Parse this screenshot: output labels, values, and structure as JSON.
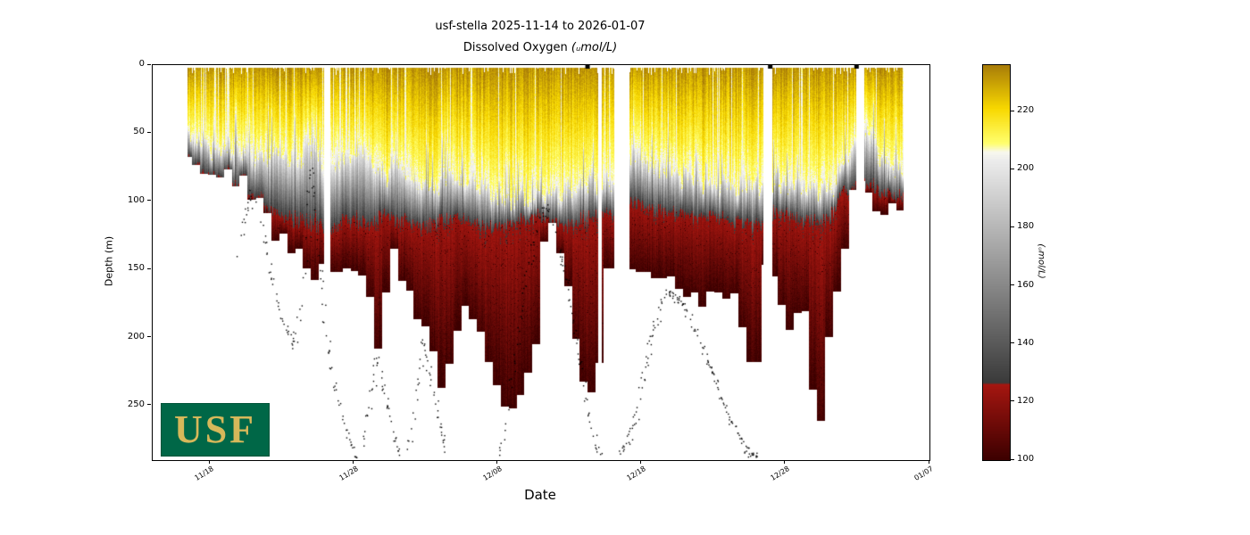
{
  "title": "usf-stella 2025-11-14 to 2026-01-07",
  "subtitle_prefix": "Dissolved Oxygen ",
  "subtitle_unit": "(ᵤmol/L)",
  "xlabel": "Date",
  "ylabel": "Depth (m)",
  "logo": {
    "text": "USF",
    "bg": "#006747",
    "fg": "#D6B85A"
  },
  "axes": {
    "x_ticks": [
      "11/18",
      "11/28",
      "12/08",
      "12/18",
      "12/28",
      "01/07"
    ],
    "x_tick_days": [
      4,
      14,
      24,
      34,
      44,
      54
    ],
    "y_ticks": [
      0,
      50,
      100,
      150,
      200,
      250
    ],
    "day_min": 0,
    "day_max": 54,
    "depth_max": 290
  },
  "colorbar": {
    "label": "(ᵤmol/L)",
    "ticks": [
      100,
      120,
      140,
      160,
      180,
      200,
      220
    ],
    "vmin": 100,
    "vmax": 236,
    "colormap_stops": [
      [
        100,
        "#3c0000"
      ],
      [
        126,
        "#a51610"
      ],
      [
        126.6,
        "#3a3a3a"
      ],
      [
        203,
        "#ececec"
      ],
      [
        206,
        "#f8f8ee"
      ],
      [
        209,
        "#ffff6e"
      ],
      [
        221,
        "#f8d800"
      ],
      [
        236,
        "#a87c08"
      ]
    ]
  },
  "chart_data": {
    "type": "heatmap",
    "title": "usf-stella 2025-11-14 to 2026-01-07",
    "variable": "Dissolved Oxygen",
    "units": "umol/L",
    "x_start_date": "2025-11-14",
    "x_end_date": "2026-01-07",
    "xlabel": "Date",
    "ylabel": "Depth (m)",
    "ylim": [
      0,
      290
    ],
    "value_range": [
      100,
      236
    ],
    "data_day_range": [
      2.4,
      52.2
    ],
    "surface_depth": 2,
    "gaps_days": [
      [
        11.9,
        12.35
      ],
      [
        30.95,
        31.2
      ],
      [
        32.1,
        33.15
      ],
      [
        42.45,
        43.05
      ],
      [
        48.9,
        49.45
      ]
    ],
    "top_marker_days": [
      30.2,
      42.9,
      48.9
    ],
    "value_levels": {
      "surface": 232,
      "yellow_base": 206,
      "gray_top": 204,
      "gray_base": 127,
      "red_top": 124,
      "red_base": 101
    },
    "yellow_gray_boundary": [
      [
        2.4,
        46
      ],
      [
        3.2,
        52
      ],
      [
        4.2,
        58
      ],
      [
        5.2,
        62
      ],
      [
        6.2,
        66
      ],
      [
        7.2,
        68
      ],
      [
        8.2,
        66
      ],
      [
        9.2,
        70
      ],
      [
        10.3,
        72
      ],
      [
        10.9,
        48
      ],
      [
        11.4,
        68
      ],
      [
        12.6,
        72
      ],
      [
        13.6,
        66
      ],
      [
        14.4,
        60
      ],
      [
        15.2,
        76
      ],
      [
        16.2,
        80
      ],
      [
        17.0,
        72
      ],
      [
        18.0,
        84
      ],
      [
        19.0,
        88
      ],
      [
        20.0,
        84
      ],
      [
        21.0,
        80
      ],
      [
        22.0,
        84
      ],
      [
        23.0,
        90
      ],
      [
        24.0,
        92
      ],
      [
        25.0,
        96
      ],
      [
        26.0,
        98
      ],
      [
        27.2,
        94
      ],
      [
        28.2,
        92
      ],
      [
        29.2,
        90
      ],
      [
        30.2,
        86
      ],
      [
        31.2,
        84
      ],
      [
        32.0,
        88
      ],
      [
        33.3,
        68
      ],
      [
        34.2,
        72
      ],
      [
        35.2,
        76
      ],
      [
        36.2,
        80
      ],
      [
        37.2,
        84
      ],
      [
        38.2,
        88
      ],
      [
        39.2,
        86
      ],
      [
        40.2,
        88
      ],
      [
        41.2,
        90
      ],
      [
        42.2,
        92
      ],
      [
        43.3,
        84
      ],
      [
        44.2,
        88
      ],
      [
        45.2,
        90
      ],
      [
        46.2,
        92
      ],
      [
        47.2,
        88
      ],
      [
        48.0,
        78
      ],
      [
        48.7,
        58
      ],
      [
        49.6,
        54
      ],
      [
        50.3,
        62
      ],
      [
        51.2,
        76
      ],
      [
        52.2,
        80
      ]
    ],
    "gray_red_boundary": [
      [
        2.4,
        90
      ],
      [
        6.0,
        95
      ],
      [
        7.0,
        100
      ],
      [
        8.0,
        106
      ],
      [
        9.0,
        112
      ],
      [
        10.0,
        117
      ],
      [
        11.0,
        118
      ],
      [
        12.0,
        120
      ],
      [
        13.0,
        118
      ],
      [
        14.0,
        114
      ],
      [
        15.0,
        118
      ],
      [
        16.0,
        112
      ],
      [
        17.0,
        114
      ],
      [
        18.0,
        117
      ],
      [
        19.0,
        120
      ],
      [
        20.0,
        115
      ],
      [
        21.0,
        112
      ],
      [
        22.0,
        115
      ],
      [
        23.0,
        118
      ],
      [
        24.0,
        120
      ],
      [
        25.0,
        118
      ],
      [
        26.0,
        114
      ],
      [
        27.2,
        112
      ],
      [
        28.0,
        117
      ],
      [
        29.0,
        118
      ],
      [
        30.0,
        115
      ],
      [
        31.0,
        110
      ],
      [
        32.0,
        112
      ],
      [
        33.3,
        100
      ],
      [
        34.0,
        104
      ],
      [
        35.0,
        108
      ],
      [
        36.0,
        110
      ],
      [
        37.0,
        112
      ],
      [
        38.0,
        114
      ],
      [
        39.0,
        112
      ],
      [
        40.0,
        114
      ],
      [
        41.0,
        117
      ],
      [
        42.0,
        120
      ],
      [
        43.3,
        108
      ],
      [
        44.0,
        112
      ],
      [
        45.0,
        114
      ],
      [
        46.0,
        117
      ],
      [
        47.0,
        114
      ],
      [
        48.0,
        94
      ],
      [
        49.0,
        88
      ],
      [
        50.0,
        92
      ],
      [
        51.0,
        95
      ],
      [
        52.2,
        98
      ]
    ],
    "profile_bottom": [
      [
        2.4,
        60
      ],
      [
        3.0,
        68
      ],
      [
        3.7,
        74
      ],
      [
        4.4,
        78
      ],
      [
        5.0,
        82
      ],
      [
        5.6,
        80
      ],
      [
        6.2,
        86
      ],
      [
        6.8,
        92
      ],
      [
        7.4,
        102
      ],
      [
        8.0,
        116
      ],
      [
        8.7,
        124
      ],
      [
        9.4,
        132
      ],
      [
        10.1,
        140
      ],
      [
        10.9,
        154
      ],
      [
        11.6,
        150
      ],
      [
        12.7,
        152
      ],
      [
        13.4,
        148
      ],
      [
        14.0,
        158
      ],
      [
        14.7,
        162
      ],
      [
        15.3,
        178
      ],
      [
        15.7,
        208
      ],
      [
        16.1,
        188
      ],
      [
        16.6,
        132
      ],
      [
        17.2,
        150
      ],
      [
        17.8,
        172
      ],
      [
        18.4,
        178
      ],
      [
        19.0,
        200
      ],
      [
        19.7,
        218
      ],
      [
        20.3,
        238
      ],
      [
        20.9,
        214
      ],
      [
        21.4,
        178
      ],
      [
        22.0,
        182
      ],
      [
        22.7,
        192
      ],
      [
        23.3,
        212
      ],
      [
        23.9,
        232
      ],
      [
        24.5,
        252
      ],
      [
        25.0,
        257
      ],
      [
        25.6,
        240
      ],
      [
        26.2,
        232
      ],
      [
        26.7,
        204
      ],
      [
        27.3,
        128
      ],
      [
        27.7,
        118
      ],
      [
        28.2,
        124
      ],
      [
        28.7,
        152
      ],
      [
        29.2,
        196
      ],
      [
        29.8,
        228
      ],
      [
        30.3,
        243
      ],
      [
        30.9,
        238
      ],
      [
        31.5,
        150
      ],
      [
        32.0,
        146
      ],
      [
        33.3,
        145
      ],
      [
        33.9,
        150
      ],
      [
        34.6,
        148
      ],
      [
        35.3,
        152
      ],
      [
        36.1,
        162
      ],
      [
        36.9,
        165
      ],
      [
        37.6,
        162
      ],
      [
        38.3,
        172
      ],
      [
        39.1,
        175
      ],
      [
        39.8,
        168
      ],
      [
        40.6,
        172
      ],
      [
        41.3,
        205
      ],
      [
        42.0,
        226
      ],
      [
        42.4,
        150
      ],
      [
        43.3,
        148
      ],
      [
        44.0,
        184
      ],
      [
        44.7,
        190
      ],
      [
        45.4,
        188
      ],
      [
        46.1,
        250
      ],
      [
        46.6,
        256
      ],
      [
        47.2,
        172
      ],
      [
        47.9,
        175
      ],
      [
        48.3,
        96
      ],
      [
        48.8,
        90
      ],
      [
        49.7,
        88
      ],
      [
        50.3,
        100
      ],
      [
        50.9,
        108
      ],
      [
        51.5,
        106
      ],
      [
        52.2,
        100
      ]
    ],
    "seafloor_track": [
      [
        5.9,
        150
      ],
      [
        6.2,
        125
      ],
      [
        6.6,
        105
      ],
      [
        6.9,
        96
      ],
      [
        7.2,
        100
      ],
      [
        7.6,
        118
      ],
      [
        8.0,
        142
      ],
      [
        8.5,
        168
      ],
      [
        9.1,
        190
      ],
      [
        9.8,
        208
      ],
      [
        10.4,
        172
      ],
      [
        10.7,
        112
      ],
      [
        10.95,
        78
      ],
      [
        11.25,
        98
      ],
      [
        11.6,
        150
      ],
      [
        12.1,
        200
      ],
      [
        12.7,
        240
      ],
      [
        13.6,
        272
      ],
      [
        14.4,
        298
      ],
      [
        15.6,
        215
      ],
      [
        16.3,
        250
      ],
      [
        17.0,
        280
      ],
      [
        17.6,
        302
      ],
      [
        18.8,
        200
      ],
      [
        19.5,
        240
      ],
      [
        20.2,
        275
      ],
      [
        20.8,
        302
      ],
      [
        23.5,
        308
      ],
      [
        24.0,
        295
      ],
      [
        24.6,
        260
      ],
      [
        25.2,
        215
      ],
      [
        25.8,
        170
      ],
      [
        26.4,
        135
      ],
      [
        26.9,
        112
      ],
      [
        27.3,
        105
      ],
      [
        27.7,
        112
      ],
      [
        28.2,
        130
      ],
      [
        28.8,
        160
      ],
      [
        29.4,
        200
      ],
      [
        30.0,
        240
      ],
      [
        30.6,
        272
      ],
      [
        31.1,
        292
      ],
      [
        31.6,
        312
      ],
      [
        33.6,
        260
      ],
      [
        34.2,
        225
      ],
      [
        34.8,
        195
      ],
      [
        35.4,
        175
      ],
      [
        35.9,
        168
      ],
      [
        36.5,
        172
      ],
      [
        37.1,
        180
      ],
      [
        37.7,
        195
      ],
      [
        38.4,
        212
      ],
      [
        39.1,
        232
      ],
      [
        39.8,
        252
      ],
      [
        40.5,
        268
      ],
      [
        41.2,
        280
      ],
      [
        41.9,
        288
      ],
      [
        42.6,
        295
      ],
      [
        43.2,
        302
      ]
    ]
  }
}
